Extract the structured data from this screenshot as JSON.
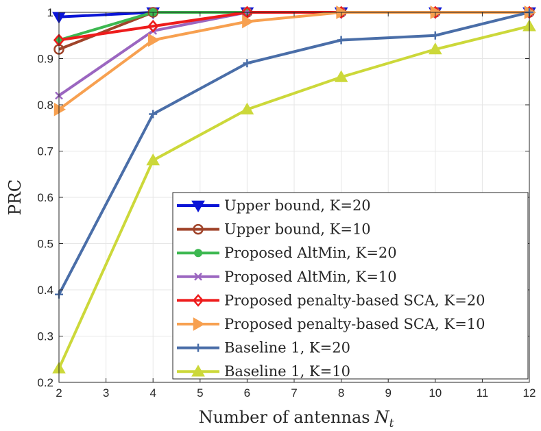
{
  "chart_data": {
    "type": "line",
    "title": "",
    "xlabel": "Number of antennas",
    "xlabel_symbol": "N",
    "xlabel_subscript": "t",
    "ylabel": "PRC",
    "xlim": [
      2,
      12
    ],
    "ylim": [
      0.2,
      1
    ],
    "xticks": [
      2,
      3,
      4,
      5,
      6,
      7,
      8,
      9,
      10,
      11,
      12
    ],
    "yticks": [
      0.2,
      0.3,
      0.4,
      0.5,
      0.6,
      0.7,
      0.8,
      0.9,
      1
    ],
    "ytick_labels": [
      "0.2",
      "0.3",
      "0.4",
      "0.5",
      "0.6",
      "0.7",
      "0.8",
      "0.9",
      "1"
    ],
    "grid": true,
    "legend_position": "bottom-right",
    "x": [
      2,
      4,
      6,
      8,
      10,
      12
    ],
    "series": [
      {
        "name": "Upper bound, K=20",
        "color": "#0a14d6",
        "marker": "triangle-down",
        "values": [
          0.99,
          1.0,
          1.0,
          1.0,
          1.0,
          1.0
        ]
      },
      {
        "name": "Upper bound, K=10",
        "color": "#a0442a",
        "marker": "circle-open",
        "values": [
          0.92,
          1.0,
          1.0,
          1.0,
          1.0,
          1.0
        ]
      },
      {
        "name": "Proposed AltMin, K=20",
        "color": "#3cb850",
        "marker": "dot",
        "values": [
          0.94,
          1.0,
          1.0,
          1.0,
          1.0,
          1.0
        ]
      },
      {
        "name": "Proposed AltMin, K=10",
        "color": "#9b66c0",
        "marker": "x",
        "values": [
          0.82,
          0.96,
          1.0,
          1.0,
          1.0,
          1.0
        ]
      },
      {
        "name": "Proposed penalty-based SCA, K=20",
        "color": "#ee1c1c",
        "marker": "diamond",
        "values": [
          0.94,
          0.97,
          1.0,
          1.0,
          1.0,
          1.0
        ]
      },
      {
        "name": "Proposed penalty-based SCA, K=10",
        "color": "#f7a050",
        "marker": "triangle-right",
        "values": [
          0.79,
          0.94,
          0.98,
          1.0,
          1.0,
          1.0
        ]
      },
      {
        "name": "Baseline 1, K=20",
        "color": "#4a6ea8",
        "marker": "plus",
        "values": [
          0.39,
          0.78,
          0.89,
          0.94,
          0.95,
          1.0
        ]
      },
      {
        "name": "Baseline 1, K=10",
        "color": "#ccd83a",
        "marker": "triangle-up",
        "values": [
          0.23,
          0.68,
          0.79,
          0.86,
          0.92,
          0.97
        ]
      }
    ]
  }
}
